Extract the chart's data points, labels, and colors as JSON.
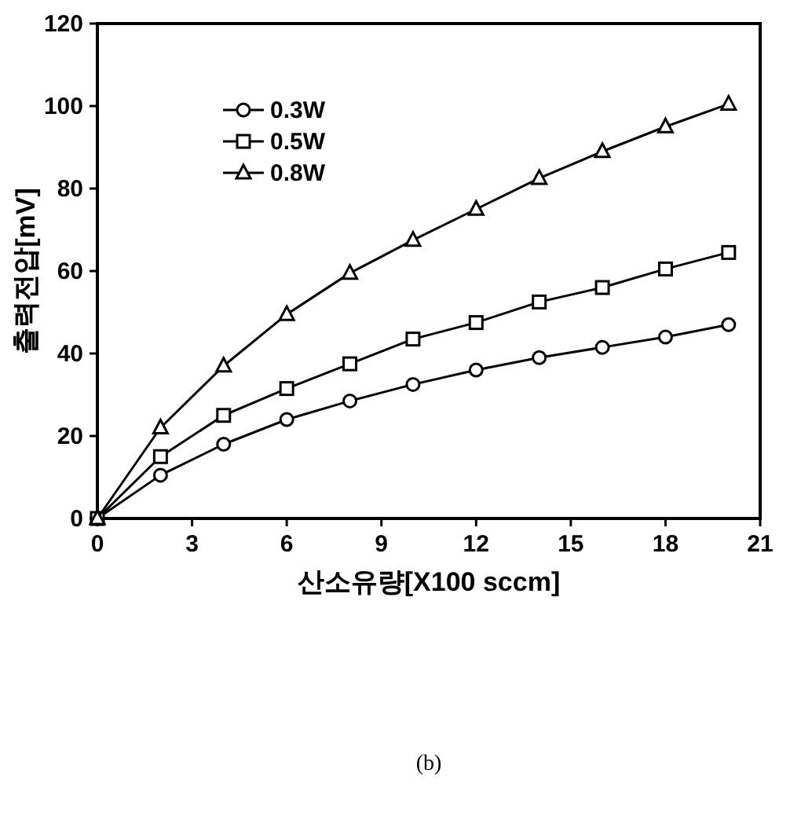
{
  "chart_data": {
    "type": "line",
    "xlabel": "산소유량[X100  sccm]",
    "ylabel": "출력전압[mV]",
    "annotations": [
      "(b)"
    ],
    "x": [
      0,
      2,
      4,
      6,
      8,
      10,
      12,
      14,
      16,
      18,
      20
    ],
    "series": [
      {
        "name": "0.3W",
        "color": "#000000",
        "marker": "circle",
        "values": [
          0,
          10.5,
          18,
          24,
          28.5,
          32.5,
          36,
          39,
          41.5,
          44,
          47
        ]
      },
      {
        "name": "0.5W",
        "color": "#000000",
        "marker": "square",
        "values": [
          0,
          15,
          25,
          31.5,
          37.5,
          43.5,
          47.5,
          52.5,
          56,
          60.5,
          64.5
        ]
      },
      {
        "name": "0.8W",
        "color": "#000000",
        "marker": "triangle",
        "values": [
          0,
          22,
          37,
          49.5,
          59.5,
          67.5,
          75,
          82.5,
          89,
          95,
          100.5
        ]
      }
    ],
    "xlim": [
      0,
      21
    ],
    "xticks": [
      0,
      3,
      6,
      9,
      12,
      15,
      18,
      21
    ],
    "ylim": [
      0,
      120
    ],
    "yticks": [
      0,
      20,
      40,
      60,
      80,
      100,
      120
    ],
    "legend": "top left",
    "grid": false,
    "line_style": "solid"
  }
}
